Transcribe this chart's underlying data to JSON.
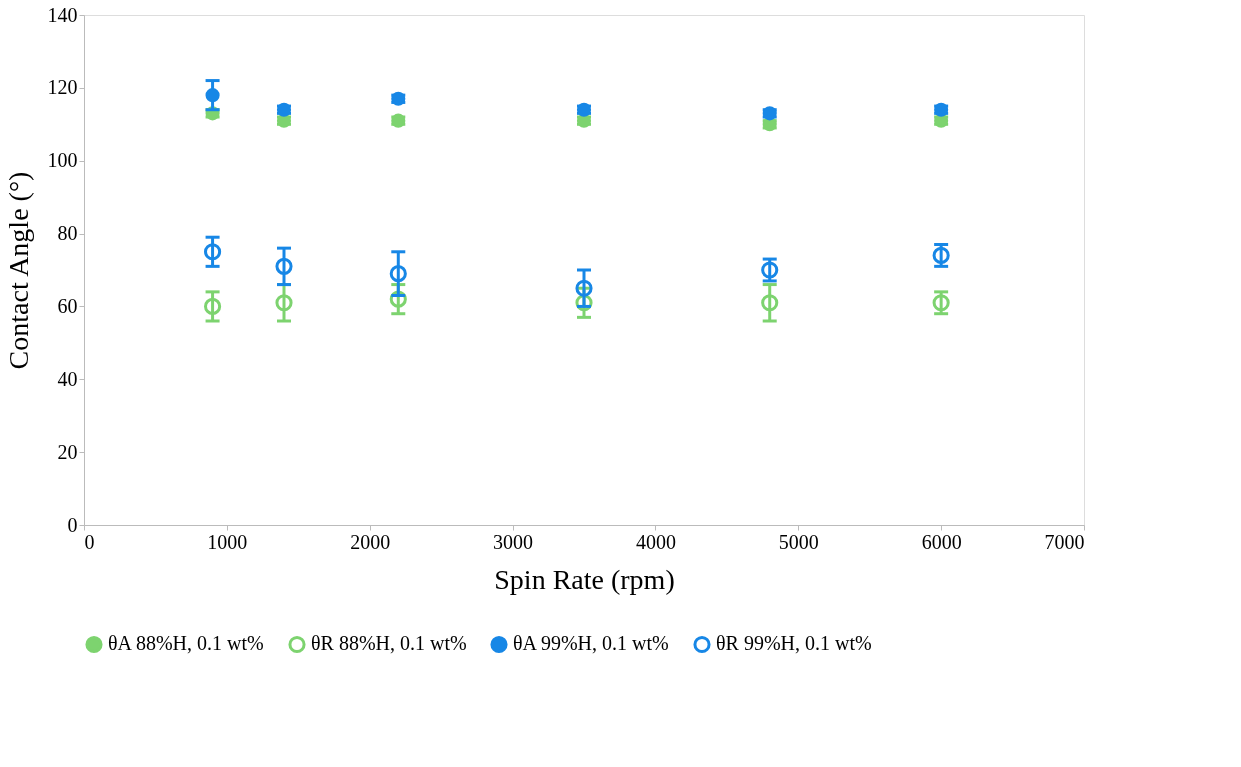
{
  "chart_data": {
    "type": "scatter",
    "xlabel": "Spin Rate (rpm)",
    "ylabel": "Contact Angle (°)",
    "xlim": [
      0,
      7000
    ],
    "xticks": [
      0,
      1000,
      2000,
      3000,
      4000,
      5000,
      6000,
      7000
    ],
    "ylim": [
      0,
      140
    ],
    "yticks": [
      0,
      20,
      40,
      60,
      80,
      100,
      120,
      140
    ],
    "grid": false,
    "legend": "bottom",
    "marker": "circle",
    "series": [
      {
        "name": "θA 88%H, 0.1 wt%",
        "color": "#7dd36f",
        "x": [
          900,
          1400,
          2200,
          3500,
          4800,
          6000
        ],
        "values": [
          113,
          111,
          111,
          111,
          110,
          111
        ],
        "errors": [
          1,
          1,
          1,
          1,
          1,
          1
        ]
      },
      {
        "name": "θR 88%H, 0.1 wt%",
        "color": "#7dd36f",
        "x": [
          900,
          1400,
          2200,
          3500,
          4800,
          6000
        ],
        "values": [
          60,
          61,
          62,
          61,
          61,
          61
        ],
        "errors": [
          4,
          5,
          4,
          4,
          5,
          3
        ]
      },
      {
        "name": "θA 99%H, 0.1 wt%",
        "color": "#1787e6",
        "x": [
          900,
          1400,
          2200,
          3500,
          4800,
          6000
        ],
        "values": [
          118,
          114,
          117,
          114,
          113,
          114
        ],
        "errors": [
          4,
          1,
          1,
          1,
          1,
          1
        ]
      },
      {
        "name": "θR 99%H, 0.1 wt%",
        "color": "#1787e6",
        "x": [
          900,
          1400,
          2200,
          3500,
          4800,
          6000
        ],
        "values": [
          75,
          71,
          69,
          65,
          70,
          74
        ],
        "errors": [
          4,
          5,
          6,
          5,
          3,
          3
        ]
      }
    ]
  }
}
